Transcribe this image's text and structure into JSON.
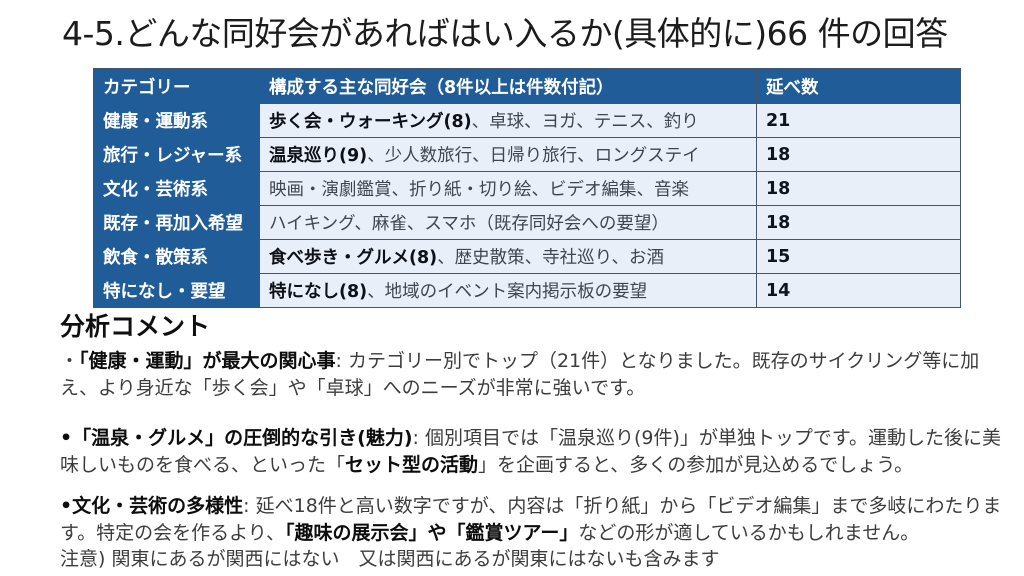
{
  "title": "4-5.どんな同好会があればはい入るか(具体的に)66 件の回答",
  "colors": {
    "table_header_bg": "#1f5c98",
    "table_row_bg": "#e9eff8"
  },
  "table": {
    "headers": [
      "カテゴリー",
      "構成する主な同好会（8件以上は件数付記）",
      "延べ数"
    ],
    "rows": [
      {
        "category": "健康・運動系",
        "items": [
          {
            "t": "歩く会・ウォーキング(8)",
            "b": true
          },
          {
            "t": "、卓球、ヨガ、テニス、釣り",
            "b": false
          }
        ],
        "count": "21"
      },
      {
        "category": "旅行・レジャー系",
        "items": [
          {
            "t": "温泉巡り(9)",
            "b": true
          },
          {
            "t": "、少人数旅行、日帰り旅行、ロングステイ",
            "b": false
          }
        ],
        "count": "18"
      },
      {
        "category": "文化・芸術系",
        "items": [
          {
            "t": "映画・演劇鑑賞、折り紙・切り絵、ビデオ編集、音楽",
            "b": false
          }
        ],
        "count": "18"
      },
      {
        "category": "既存・再加入希望",
        "items": [
          {
            "t": "ハイキング、麻雀、スマホ（既存同好会への要望）",
            "b": false
          }
        ],
        "count": "18"
      },
      {
        "category": "飲食・散策系",
        "items": [
          {
            "t": "食べ歩き・グルメ(8)",
            "b": true
          },
          {
            "t": "、歴史散策、寺社巡り、お酒",
            "b": false
          }
        ],
        "count": "15"
      },
      {
        "category": "特になし・要望",
        "items": [
          {
            "t": "特になし(8)",
            "b": true
          },
          {
            "t": "、地域のイベント案内掲示板の要望",
            "b": false
          }
        ],
        "count": "14"
      }
    ]
  },
  "analysis": {
    "heading": "分析コメント",
    "paragraphs": [
      {
        "name": "health-exercise-comment",
        "gap": "gap-lg",
        "segments": [
          {
            "t": "・",
            "b": false
          },
          {
            "t": "「健康・運動」が最大の関心事",
            "b": true
          },
          {
            "t": ": カテゴリー別でトップ（21件）となりました。既存のサイクリング等に加え、より身近な「歩く会」や「卓球」へのニーズが非常に強いです。",
            "b": false
          }
        ]
      },
      {
        "name": "onsen-gourmet-comment",
        "gap": "gap-md",
        "segments": [
          {
            "t": "•",
            "b": true
          },
          {
            "t": "「温泉・グルメ」の圧倒的な引き(魅力)",
            "b": true
          },
          {
            "t": ": 個別項目では「温泉巡り(9件)」が単独トップです。運動した後に美味しいものを食べる、といった「",
            "b": false
          },
          {
            "t": "セット型の活動",
            "b": true
          },
          {
            "t": "」を企画すると、多くの参加が見込めるでしょう。",
            "b": false
          }
        ]
      },
      {
        "name": "culture-art-comment",
        "gap": "",
        "segments": [
          {
            "t": "•",
            "b": true
          },
          {
            "t": "文化・芸術の多様性",
            "b": true
          },
          {
            "t": ": 延べ18件と高い数字ですが、内容は「折り紙」から「ビデオ編集」まで多岐にわたります。特定の会を作るより、",
            "b": false
          },
          {
            "t": "「趣味の展示会」や「鑑賞ツアー」",
            "b": true
          },
          {
            "t": "などの形が適しているかもしれません。",
            "b": false
          }
        ]
      },
      {
        "name": "note-line",
        "gap": "",
        "segments": [
          {
            "t": "注意) 関東にあるが関西にはない　又は関西にあるが関東にはないも含みます",
            "b": false
          }
        ]
      }
    ]
  }
}
